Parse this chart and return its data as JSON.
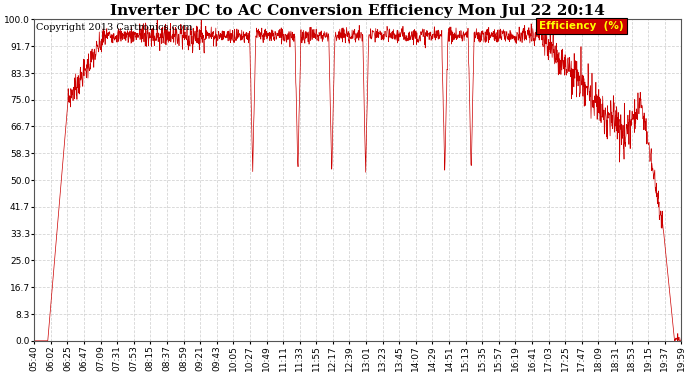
{
  "title": "Inverter DC to AC Conversion Efficiency Mon Jul 22 20:14",
  "copyright": "Copyright 2013 Cartronics.com",
  "legend_label": "Efficiency  (%)",
  "legend_bg": "#cc0000",
  "legend_fg": "#ffff00",
  "line_color": "#cc0000",
  "bg_color": "#ffffff",
  "plot_bg": "#ffffff",
  "grid_color": "#cccccc",
  "yticks": [
    0.0,
    8.3,
    16.7,
    25.0,
    33.3,
    41.7,
    50.0,
    58.3,
    66.7,
    75.0,
    83.3,
    91.7,
    100.0
  ],
  "ylim": [
    0,
    100
  ],
  "xtick_labels": [
    "05:40",
    "06:02",
    "06:25",
    "06:47",
    "07:09",
    "07:31",
    "07:53",
    "08:15",
    "08:37",
    "08:59",
    "09:21",
    "09:43",
    "10:05",
    "10:27",
    "10:49",
    "11:11",
    "11:33",
    "11:55",
    "12:17",
    "12:39",
    "13:01",
    "13:23",
    "13:45",
    "14:07",
    "14:29",
    "14:51",
    "15:13",
    "15:35",
    "15:57",
    "16:19",
    "16:41",
    "17:03",
    "17:25",
    "17:47",
    "18:09",
    "18:31",
    "18:53",
    "19:15",
    "19:37",
    "19:59"
  ],
  "title_fontsize": 11,
  "copyright_fontsize": 7,
  "tick_fontsize": 6.5
}
